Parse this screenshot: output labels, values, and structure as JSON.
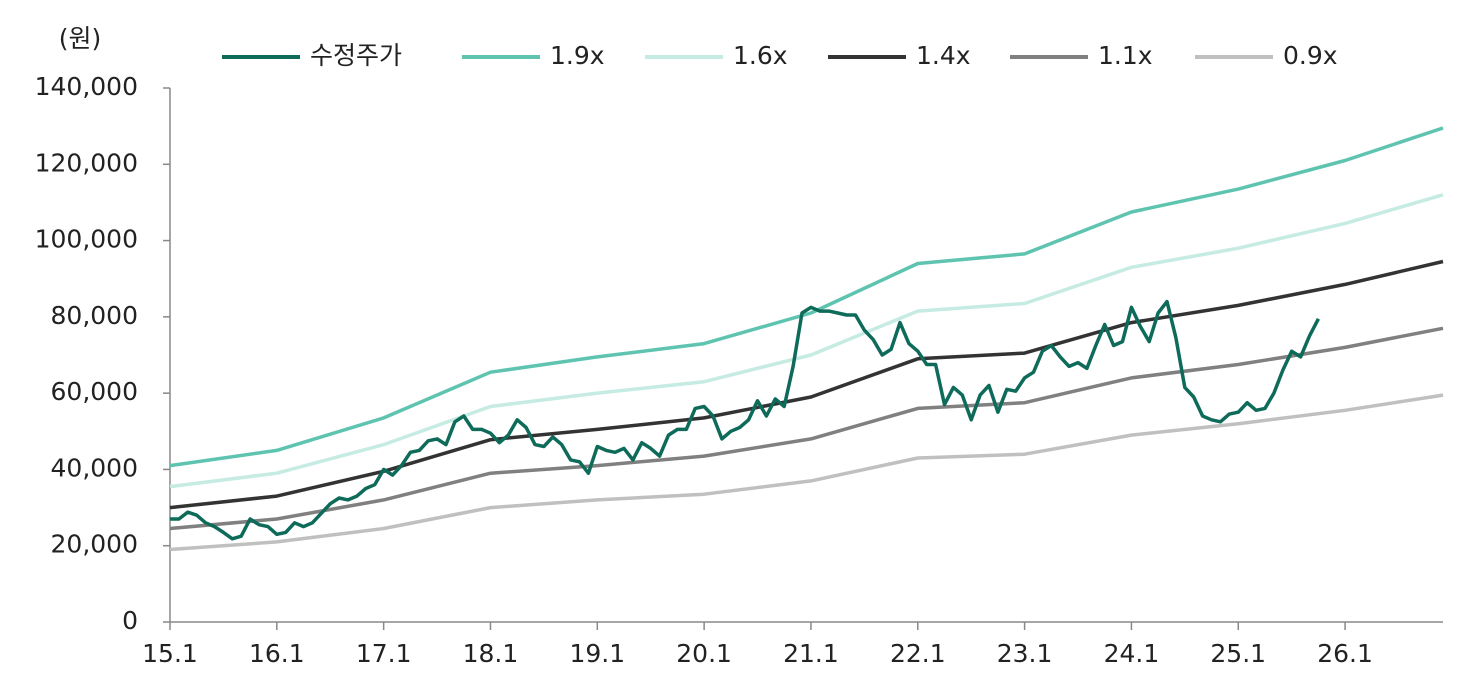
{
  "chart_data": {
    "type": "line",
    "y_label": "(원)",
    "xlim": [
      "15.1",
      "26.12"
    ],
    "xticks": [
      "15.1",
      "16.1",
      "17.1",
      "18.1",
      "19.1",
      "20.1",
      "21.1",
      "22.1",
      "23.1",
      "24.1",
      "25.1",
      "26.1"
    ],
    "ylim": [
      0,
      140000
    ],
    "yticks": [
      0,
      {
        "value": 20000,
        "label": "20,000"
      },
      {
        "value": 40000,
        "label": "40,000"
      },
      {
        "value": 60000,
        "label": "60,000"
      },
      {
        "value": 80000,
        "label": "80,000"
      },
      {
        "value": 100000,
        "label": "100,000"
      },
      {
        "value": 120000,
        "label": "120,000"
      },
      {
        "value": 140000,
        "label": "140,000"
      }
    ],
    "grid": false,
    "series": [
      {
        "name": "수정주가",
        "color": "#0e6b5a",
        "x": [
          "15.1",
          "15.2",
          "15.3",
          "15.4",
          "15.5",
          "15.6",
          "15.7",
          "15.8",
          "15.9",
          "15.10",
          "15.11",
          "15.12",
          "16.1",
          "16.2",
          "16.3",
          "16.4",
          "16.5",
          "16.6",
          "16.7",
          "16.8",
          "16.9",
          "16.10",
          "16.11",
          "16.12",
          "17.1",
          "17.2",
          "17.3",
          "17.4",
          "17.5",
          "17.6",
          "17.7",
          "17.8",
          "17.9",
          "17.10",
          "17.11",
          "17.12",
          "18.1",
          "18.2",
          "18.3",
          "18.4",
          "18.5",
          "18.6",
          "18.7",
          "18.8",
          "18.9",
          "18.10",
          "18.11",
          "18.12",
          "19.1",
          "19.2",
          "19.3",
          "19.4",
          "19.5",
          "19.6",
          "19.7",
          "19.8",
          "19.9",
          "19.10",
          "19.11",
          "19.12",
          "20.1",
          "20.2",
          "20.3",
          "20.4",
          "20.5",
          "20.6",
          "20.7",
          "20.8",
          "20.9",
          "20.10",
          "20.11",
          "20.12",
          "21.1",
          "21.2",
          "21.3",
          "21.4",
          "21.5",
          "21.6",
          "21.7",
          "21.8",
          "21.9",
          "21.10",
          "21.11",
          "21.12",
          "22.1",
          "22.2",
          "22.3",
          "22.4",
          "22.5",
          "22.6",
          "22.7",
          "22.8",
          "22.9",
          "22.10",
          "22.11",
          "22.12",
          "23.1",
          "23.2",
          "23.3",
          "23.4",
          "23.5",
          "23.6",
          "23.7",
          "23.8",
          "23.9",
          "23.10",
          "23.11",
          "23.12",
          "24.1",
          "24.2",
          "24.3",
          "24.4",
          "24.5",
          "24.6",
          "24.7",
          "24.8",
          "24.9",
          "24.10",
          "24.11",
          "24.12",
          "25.1",
          "25.2",
          "25.3",
          "25.4",
          "25.5",
          "25.6",
          "25.7",
          "25.8",
          "25.9",
          "25.10"
        ],
        "values": [
          27000,
          27000,
          28800,
          28000,
          26000,
          25000,
          23500,
          21800,
          22500,
          27000,
          25500,
          25000,
          23000,
          23500,
          26000,
          25000,
          26000,
          28500,
          31000,
          32500,
          32000,
          33000,
          35000,
          36000,
          40000,
          38500,
          41000,
          44500,
          45000,
          47500,
          48000,
          46500,
          52500,
          54000,
          50500,
          50500,
          49500,
          47000,
          49000,
          53000,
          51000,
          46500,
          46000,
          48500,
          46500,
          42500,
          42000,
          39000,
          46000,
          45000,
          44500,
          45500,
          42500,
          47000,
          45500,
          43500,
          49000,
          50500,
          50500,
          56000,
          56500,
          54000,
          48000,
          50000,
          51000,
          53000,
          58000,
          54000,
          58500,
          56500,
          67000,
          81000,
          82500,
          81500,
          81500,
          81000,
          80500,
          80500,
          76500,
          74000,
          70000,
          71500,
          78500,
          73000,
          71000,
          67500,
          67500,
          57000,
          61500,
          59500,
          53000,
          59500,
          62000,
          55000,
          61000,
          60500,
          64000,
          65500,
          71000,
          72500,
          69500,
          67000,
          68000,
          66500,
          72500,
          78000,
          72500,
          73500,
          82500,
          77500,
          73500,
          81000,
          84000,
          74500,
          61500,
          59000,
          54000,
          53000,
          52500,
          54500,
          55000,
          57500,
          55500,
          56000,
          60000,
          66000,
          71000,
          69500,
          75000,
          79500
        ]
      },
      {
        "name": "1.9x",
        "color": "#5ec4b0",
        "x": [
          "15.1",
          "16.1",
          "17.1",
          "18.1",
          "19.1",
          "20.1",
          "21.1",
          "22.1",
          "23.1",
          "24.1",
          "25.1",
          "26.1",
          "26.12"
        ],
        "values": [
          41000,
          45000,
          53500,
          65500,
          69500,
          73000,
          81000,
          94000,
          96500,
          107500,
          113500,
          121000,
          129500
        ]
      },
      {
        "name": "1.6x",
        "color": "#c5ebe2",
        "x": [
          "15.1",
          "16.1",
          "17.1",
          "18.1",
          "19.1",
          "20.1",
          "21.1",
          "22.1",
          "23.1",
          "24.1",
          "25.1",
          "26.1",
          "26.12"
        ],
        "values": [
          35500,
          39000,
          46500,
          56500,
          60000,
          63000,
          70000,
          81500,
          83500,
          93000,
          98000,
          104500,
          112000
        ]
      },
      {
        "name": "1.4x",
        "color": "#333333",
        "x": [
          "15.1",
          "16.1",
          "17.1",
          "18.1",
          "19.1",
          "20.1",
          "21.1",
          "22.1",
          "23.1",
          "24.1",
          "25.1",
          "26.1",
          "26.12"
        ],
        "values": [
          30000,
          33000,
          39500,
          47800,
          50500,
          53500,
          59000,
          69000,
          70500,
          78500,
          83000,
          88500,
          94500
        ]
      },
      {
        "name": "1.1x",
        "color": "#808080",
        "x": [
          "15.1",
          "16.1",
          "17.1",
          "18.1",
          "19.1",
          "20.1",
          "21.1",
          "22.1",
          "23.1",
          "24.1",
          "25.1",
          "26.1",
          "26.12"
        ],
        "values": [
          24500,
          27000,
          32000,
          39000,
          41000,
          43500,
          48000,
          56000,
          57500,
          64000,
          67500,
          72000,
          77000
        ]
      },
      {
        "name": "0.9x",
        "color": "#c0c0c0",
        "x": [
          "15.1",
          "16.1",
          "17.1",
          "18.1",
          "19.1",
          "20.1",
          "21.1",
          "22.1",
          "23.1",
          "24.1",
          "25.1",
          "26.1",
          "26.12"
        ],
        "values": [
          19000,
          21000,
          24500,
          30000,
          32000,
          33500,
          37000,
          43000,
          44000,
          49000,
          52000,
          55500,
          59500
        ]
      }
    ]
  }
}
